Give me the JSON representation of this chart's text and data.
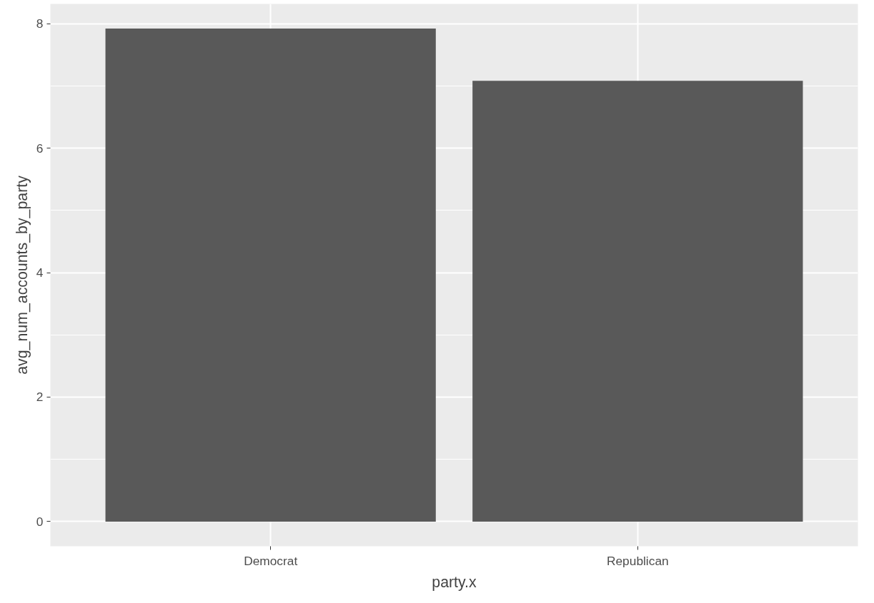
{
  "chart_data": {
    "type": "bar",
    "xlabel": "party.x",
    "ylabel": "avg_num_accounts_by_party",
    "categories": [
      "Democrat",
      "Republican"
    ],
    "values": [
      7.92,
      7.08
    ],
    "color": "#595959",
    "ylim": [
      -0.396,
      8.316
    ],
    "yticks": [
      0,
      2,
      4,
      6,
      8
    ],
    "grid": true
  }
}
